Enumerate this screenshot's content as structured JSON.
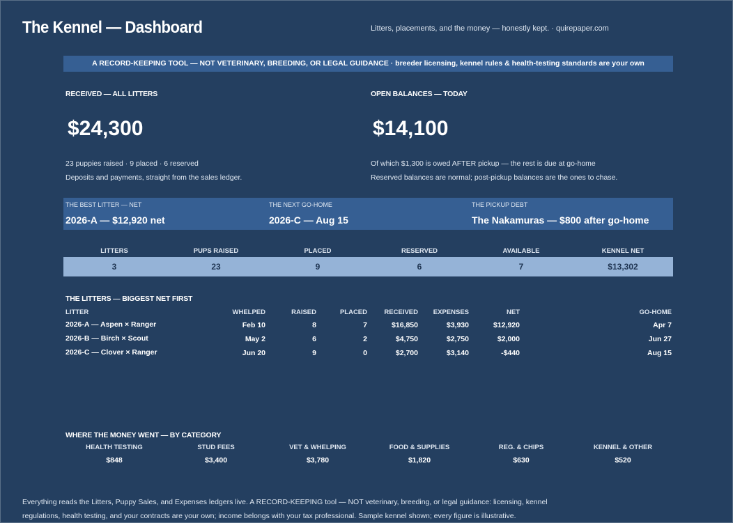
{
  "header": {
    "title": "The Kennel — Dashboard",
    "tagline": "Litters, placements, and the money — honestly kept.  ·  quirepaper.com"
  },
  "banner": "A RECORD-KEEPING TOOL — NOT VETERINARY, BREEDING, OR LEGAL GUIDANCE  ·  breeder licensing, kennel rules & health-testing standards are your own",
  "received": {
    "label": "RECEIVED — ALL LITTERS",
    "value": "$24,300",
    "line1": "23 puppies raised  ·  9 placed  ·  6 reserved",
    "line2": "Deposits and payments, straight from the sales ledger."
  },
  "open": {
    "label": "OPEN BALANCES — TODAY",
    "value": "$14,100",
    "line1": "Of which $1,300 is owed AFTER pickup — the rest is due at go-home",
    "line2": "Reserved balances are normal; post-pickup balances are the ones to chase."
  },
  "highlights": [
    {
      "label": "THE BEST LITTER — NET",
      "value": "2026-A — $12,920 net"
    },
    {
      "label": "THE NEXT GO-HOME",
      "value": "2026-C — Aug 15"
    },
    {
      "label": "THE PICKUP DEBT",
      "value": "The Nakamuras — $800 after go-home"
    }
  ],
  "kpis": [
    {
      "label": "LITTERS",
      "value": "3"
    },
    {
      "label": "PUPS RAISED",
      "value": "23"
    },
    {
      "label": "PLACED",
      "value": "9"
    },
    {
      "label": "RESERVED",
      "value": "6"
    },
    {
      "label": "AVAILABLE",
      "value": "7"
    },
    {
      "label": "KENNEL NET",
      "value": "$13,302"
    }
  ],
  "litters": {
    "title": "THE LITTERS — BIGGEST NET FIRST",
    "headers": {
      "litter": "LITTER",
      "whelped": "WHELPED",
      "raised": "RAISED",
      "placed": "PLACED",
      "received": "RECEIVED",
      "expenses": "EXPENSES",
      "net": "NET",
      "gohome": "GO-HOME"
    },
    "rows": [
      {
        "litter": "2026-A  —  Aspen × Ranger",
        "whelped": "Feb 10",
        "raised": "8",
        "placed": "7",
        "received": "$16,850",
        "expenses": "$3,930",
        "net": "$12,920",
        "gohome": "Apr 7"
      },
      {
        "litter": "2026-B  —  Birch × Scout",
        "whelped": "May 2",
        "raised": "6",
        "placed": "2",
        "received": "$4,750",
        "expenses": "$2,750",
        "net": "$2,000",
        "gohome": "Jun 27"
      },
      {
        "litter": "2026-C  —  Clover × Ranger",
        "whelped": "Jun 20",
        "raised": "9",
        "placed": "0",
        "received": "$2,700",
        "expenses": "$3,140",
        "net": "-$440",
        "gohome": "Aug 15"
      }
    ]
  },
  "categories": {
    "title": "WHERE THE MONEY WENT — BY CATEGORY",
    "items": [
      {
        "label": "HEALTH TESTING",
        "value": "$848"
      },
      {
        "label": "STUD FEES",
        "value": "$3,400"
      },
      {
        "label": "VET & WHELPING",
        "value": "$3,780"
      },
      {
        "label": "FOOD & SUPPLIES",
        "value": "$1,820"
      },
      {
        "label": "REG. & CHIPS",
        "value": "$630"
      },
      {
        "label": "KENNEL & OTHER",
        "value": "$520"
      }
    ]
  },
  "footer": {
    "line1": "Everything reads the Litters, Puppy Sales, and Expenses ledgers live. A RECORD-KEEPING tool — NOT veterinary, breeding, or legal guidance: licensing, kennel",
    "line2": "regulations, health testing, and your contracts are your own; income belongs with your tax professional. Sample kennel shown; every figure is illustrative."
  },
  "colors": {
    "background": "#243f60",
    "band": "#365f93",
    "kpi_bar": "#95b3d7"
  }
}
